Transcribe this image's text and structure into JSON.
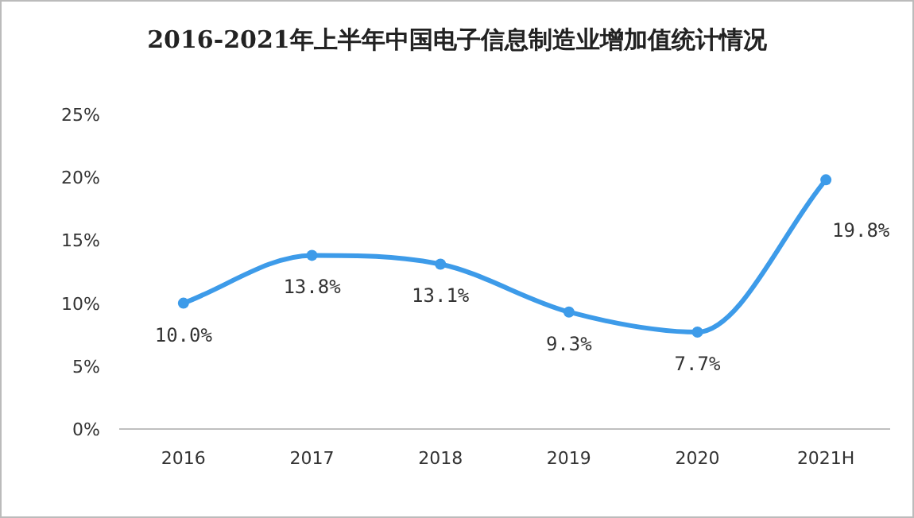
{
  "chart_data": {
    "type": "line",
    "title": "2016-2021年上半年中国电子信息制造业增加值统计情况",
    "categories": [
      "2016",
      "2017",
      "2018",
      "2019",
      "2020",
      "2021H"
    ],
    "values": [
      10.0,
      13.8,
      13.1,
      9.3,
      7.7,
      19.8
    ],
    "value_labels": [
      "10.0%",
      "13.8%",
      "13.1%",
      "9.3%",
      "7.7%",
      "19.8%"
    ],
    "color": "#3d9be9",
    "marker": "circle",
    "line_style": "solid",
    "grid": false,
    "ylim": [
      0,
      25
    ],
    "yticks": [
      {
        "value": 0,
        "label": "0%"
      },
      {
        "value": 5,
        "label": "5%"
      },
      {
        "value": 10,
        "label": "10%"
      },
      {
        "value": 15,
        "label": "15%"
      },
      {
        "value": 20,
        "label": "20%"
      },
      {
        "value": 25,
        "label": "25%"
      }
    ]
  }
}
